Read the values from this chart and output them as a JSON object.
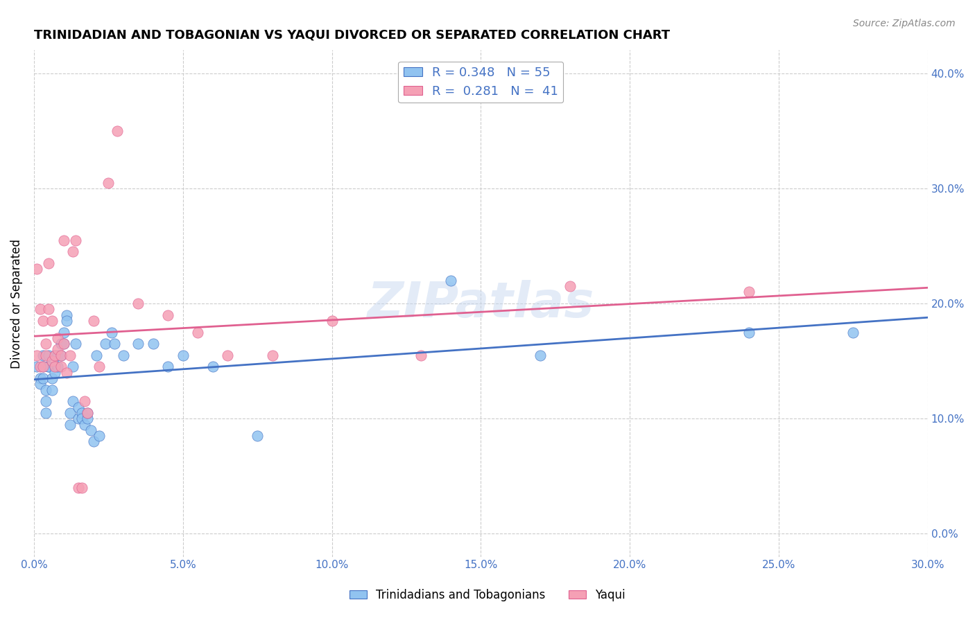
{
  "title": "TRINIDADIAN AND TOBAGONIAN VS YAQUI DIVORCED OR SEPARATED CORRELATION CHART",
  "source": "Source: ZipAtlas.com",
  "xlabel_ticks": [
    "0.0%",
    "5.0%",
    "10.0%",
    "15.0%",
    "20.0%",
    "25.0%",
    "30.0%"
  ],
  "ylabel_ticks": [
    "0.0%",
    "10.0%",
    "20.0%",
    "30.0%",
    "40.0%"
  ],
  "xmin": 0.0,
  "xmax": 0.3,
  "ymin": -0.02,
  "ymax": 0.42,
  "watermark": "ZIPatlas",
  "legend_label1": "Trinidadians and Tobagonians",
  "legend_label2": "Yaqui",
  "r1": "0.348",
  "n1": "55",
  "r2": "0.281",
  "n2": "41",
  "color1": "#91c3f0",
  "color2": "#f5a0b5",
  "line_color1": "#4472c4",
  "line_color2": "#e06090",
  "ylabel": "Divorced or Separated",
  "blue_scatter_x": [
    0.001,
    0.002,
    0.002,
    0.003,
    0.003,
    0.003,
    0.004,
    0.004,
    0.004,
    0.005,
    0.005,
    0.005,
    0.006,
    0.006,
    0.007,
    0.007,
    0.007,
    0.008,
    0.008,
    0.009,
    0.009,
    0.01,
    0.01,
    0.011,
    0.011,
    0.012,
    0.012,
    0.013,
    0.013,
    0.014,
    0.015,
    0.015,
    0.016,
    0.016,
    0.017,
    0.018,
    0.018,
    0.019,
    0.02,
    0.021,
    0.022,
    0.024,
    0.026,
    0.027,
    0.03,
    0.035,
    0.04,
    0.045,
    0.05,
    0.06,
    0.075,
    0.14,
    0.17,
    0.24,
    0.275
  ],
  "blue_scatter_y": [
    0.145,
    0.135,
    0.13,
    0.155,
    0.145,
    0.135,
    0.125,
    0.115,
    0.105,
    0.145,
    0.155,
    0.145,
    0.135,
    0.125,
    0.155,
    0.145,
    0.14,
    0.155,
    0.145,
    0.165,
    0.155,
    0.165,
    0.175,
    0.19,
    0.185,
    0.095,
    0.105,
    0.115,
    0.145,
    0.165,
    0.1,
    0.11,
    0.105,
    0.1,
    0.095,
    0.1,
    0.105,
    0.09,
    0.08,
    0.155,
    0.085,
    0.165,
    0.175,
    0.165,
    0.155,
    0.165,
    0.165,
    0.145,
    0.155,
    0.145,
    0.085,
    0.22,
    0.155,
    0.175,
    0.175
  ],
  "pink_scatter_x": [
    0.001,
    0.001,
    0.002,
    0.002,
    0.003,
    0.003,
    0.004,
    0.004,
    0.005,
    0.005,
    0.006,
    0.006,
    0.007,
    0.007,
    0.008,
    0.008,
    0.009,
    0.009,
    0.01,
    0.01,
    0.011,
    0.012,
    0.013,
    0.014,
    0.015,
    0.016,
    0.017,
    0.018,
    0.02,
    0.022,
    0.025,
    0.028,
    0.035,
    0.045,
    0.055,
    0.065,
    0.08,
    0.1,
    0.13,
    0.18,
    0.24
  ],
  "pink_scatter_y": [
    0.155,
    0.23,
    0.195,
    0.145,
    0.185,
    0.145,
    0.165,
    0.155,
    0.235,
    0.195,
    0.185,
    0.15,
    0.155,
    0.145,
    0.17,
    0.16,
    0.155,
    0.145,
    0.165,
    0.255,
    0.14,
    0.155,
    0.245,
    0.255,
    0.04,
    0.04,
    0.115,
    0.105,
    0.185,
    0.145,
    0.305,
    0.35,
    0.2,
    0.19,
    0.175,
    0.155,
    0.155,
    0.185,
    0.155,
    0.215,
    0.21
  ]
}
